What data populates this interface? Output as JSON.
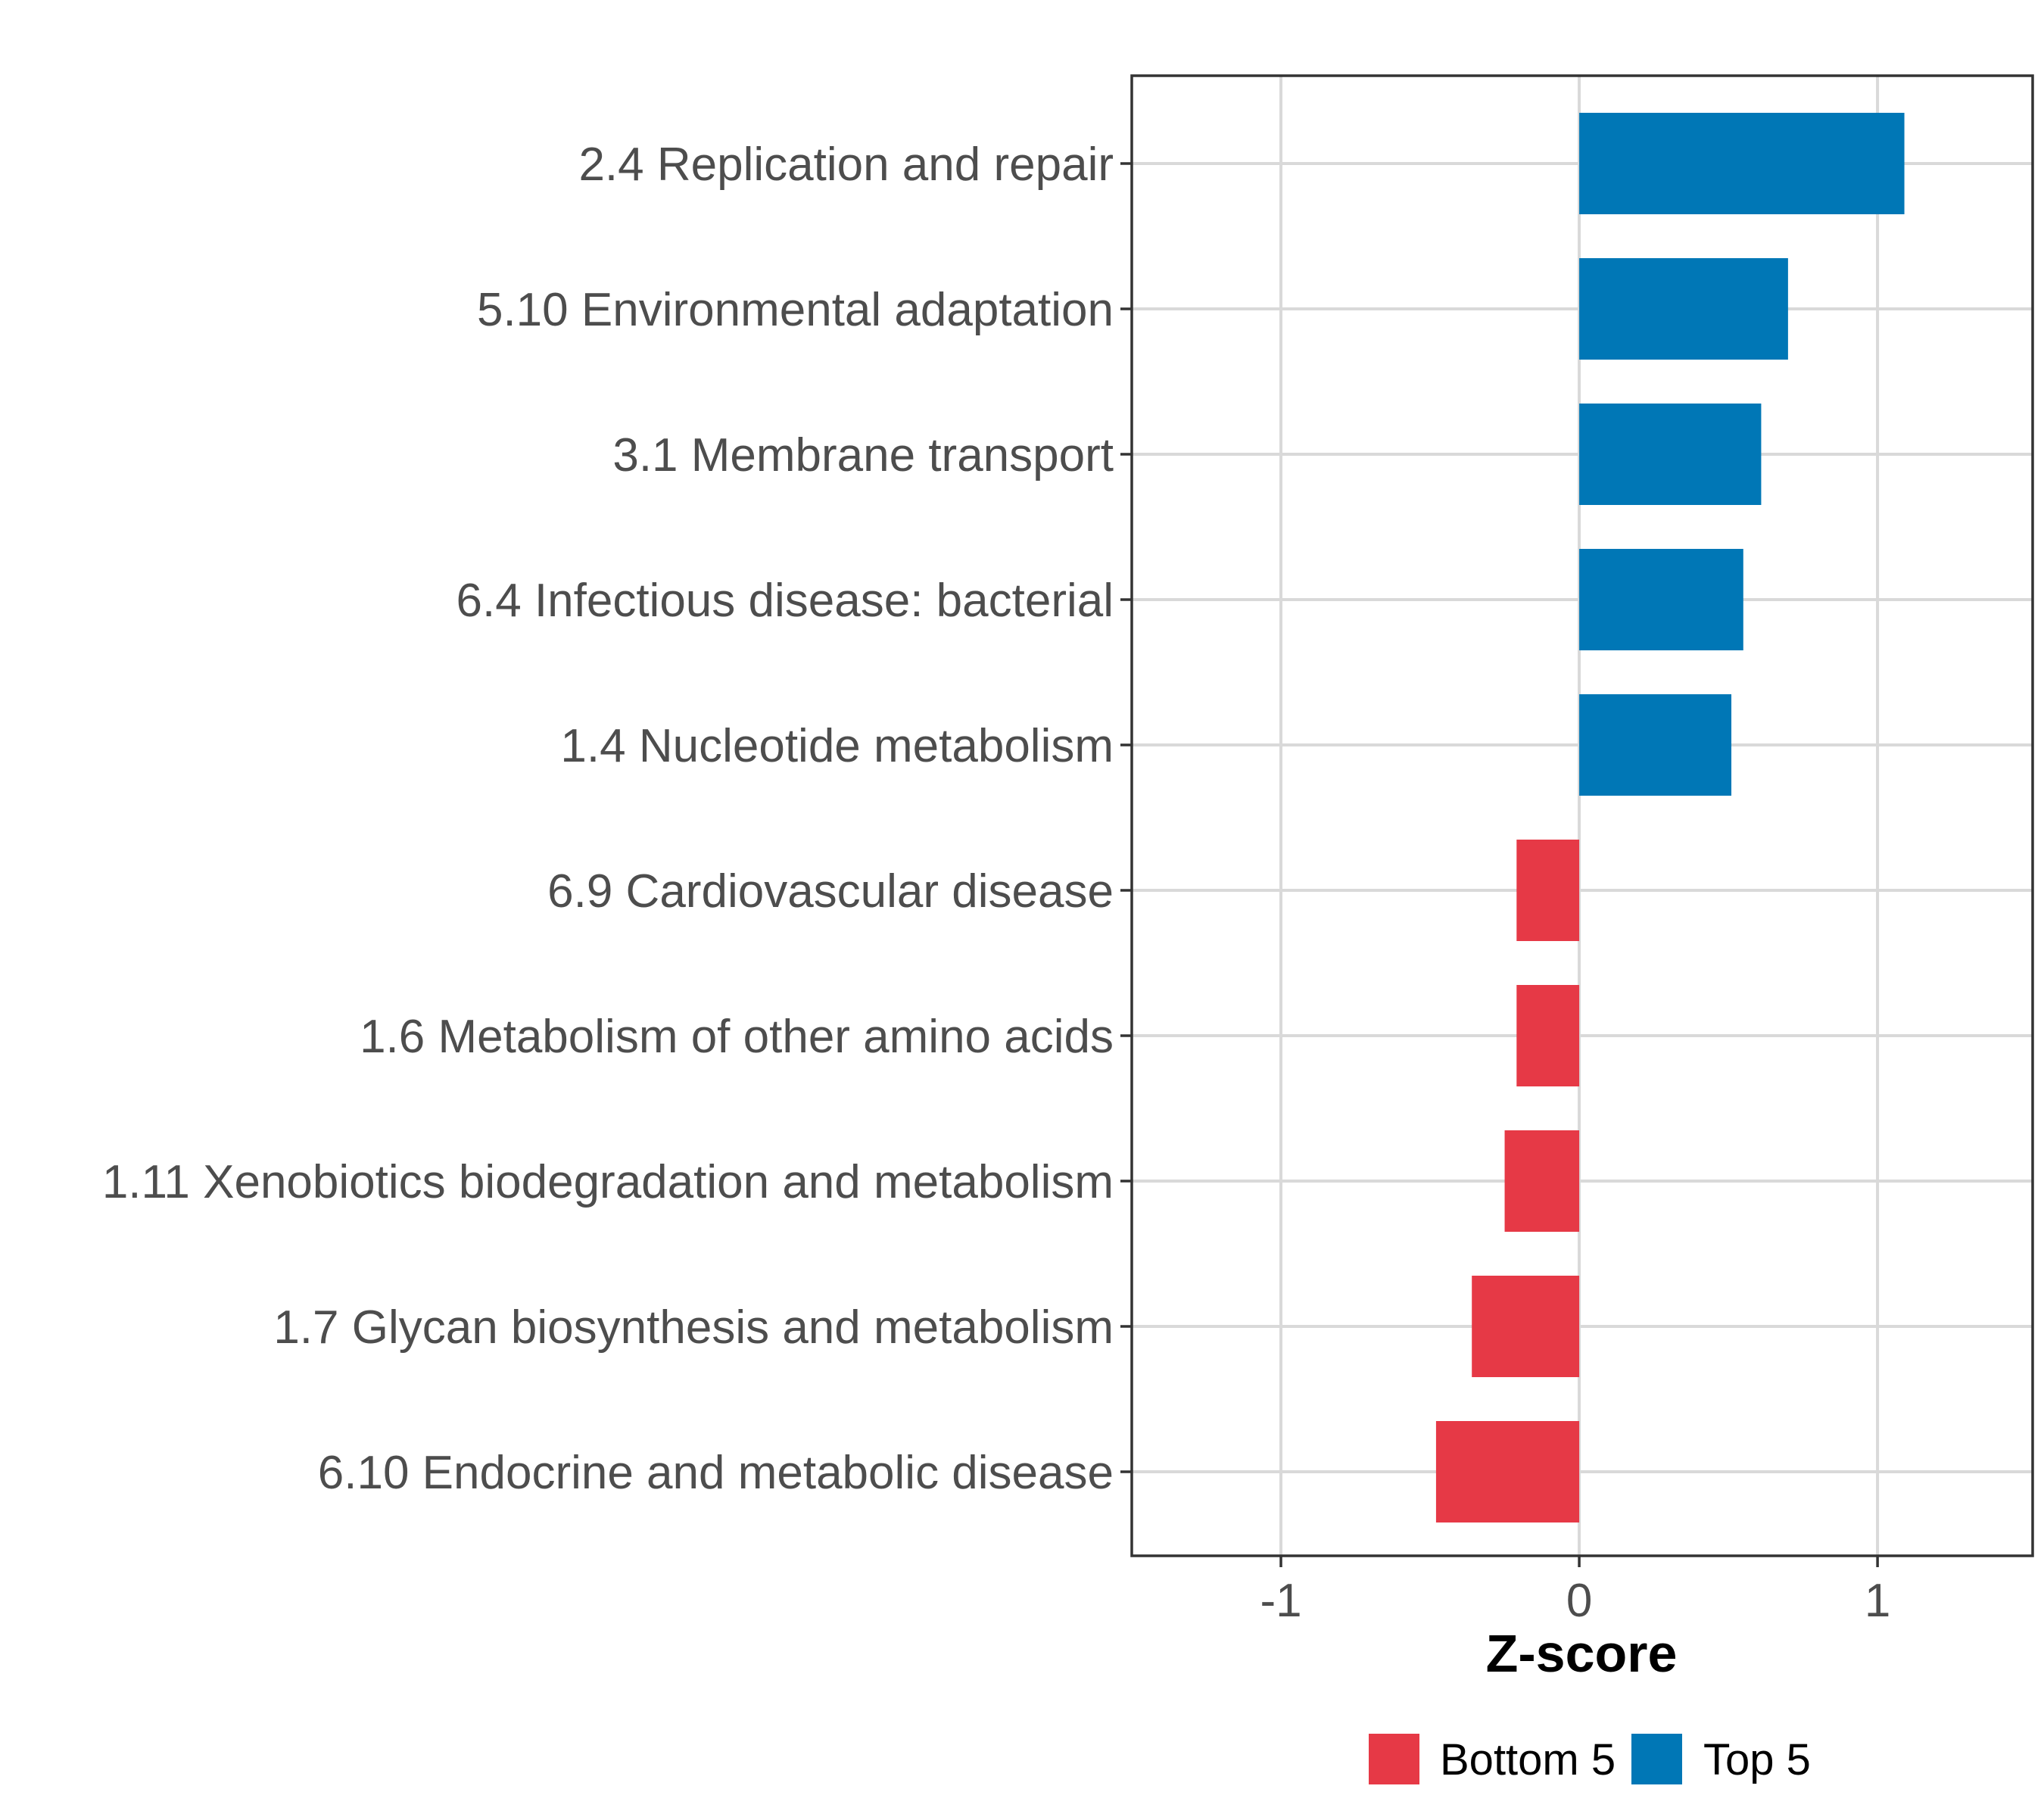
{
  "chart_data": {
    "type": "bar",
    "orientation": "horizontal",
    "title": "",
    "xlabel": "Z-score",
    "ylabel": "",
    "xlim": [
      -1.5,
      1.52
    ],
    "xticks": [
      -1,
      0,
      1
    ],
    "xtick_labels": [
      "-1",
      "0",
      "1"
    ],
    "grid": true,
    "legend_position": "bottom",
    "categories": [
      "2.4 Replication and repair",
      "5.10 Environmental adaptation",
      "3.1 Membrane transport",
      "6.4 Infectious disease: bacterial",
      "1.4 Nucleotide metabolism",
      "6.9 Cardiovascular disease",
      "1.6 Metabolism of other amino acids",
      "1.11 Xenobiotics biodegradation and metabolism",
      "1.7 Glycan biosynthesis and metabolism",
      "6.10 Endocrine and metabolic disease"
    ],
    "values": [
      1.09,
      0.7,
      0.61,
      0.55,
      0.51,
      -0.21,
      -0.21,
      -0.25,
      -0.36,
      -0.48
    ],
    "groups": [
      "Top 5",
      "Top 5",
      "Top 5",
      "Top 5",
      "Top 5",
      "Bottom 5",
      "Bottom 5",
      "Bottom 5",
      "Bottom 5",
      "Bottom 5"
    ],
    "legend": [
      {
        "name": "Bottom 5",
        "color": "#e63946"
      },
      {
        "name": "Top 5",
        "color": "#0077b6"
      }
    ]
  }
}
